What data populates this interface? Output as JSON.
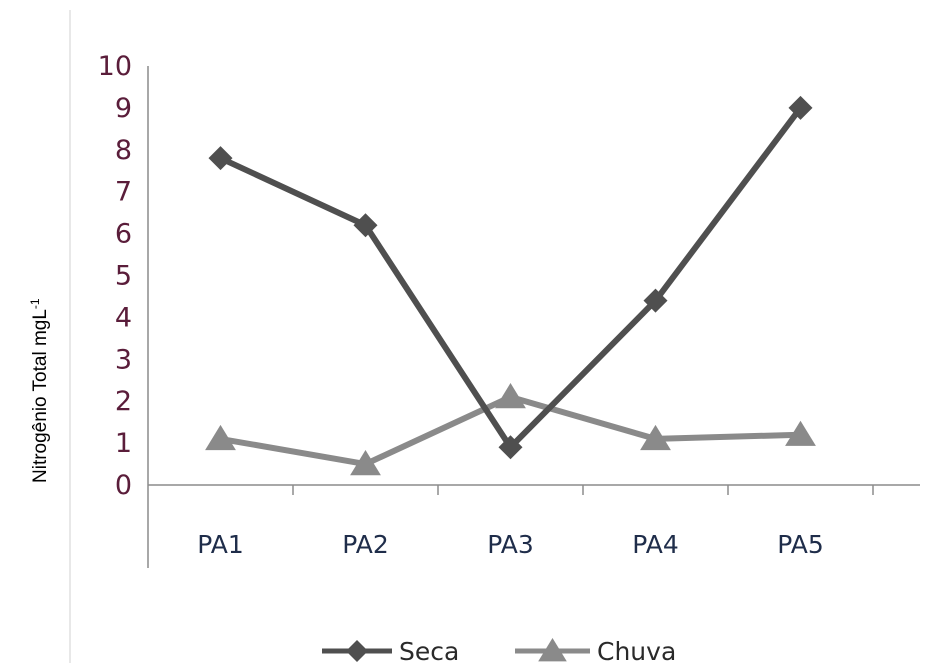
{
  "chart_data": {
    "type": "line",
    "categories": [
      "PA1",
      "PA2",
      "PA3",
      "PA4",
      "PA5"
    ],
    "series": [
      {
        "name": "Seca",
        "values": [
          7.8,
          6.2,
          0.9,
          4.4,
          9.0
        ],
        "color": "#4f4f4f",
        "marker": "diamond"
      },
      {
        "name": "Chuva",
        "values": [
          1.1,
          0.5,
          2.1,
          1.1,
          1.2
        ],
        "color": "#8a8a8a",
        "marker": "triangle"
      }
    ],
    "ylabel": "Nitrogênio Total mgL",
    "ylabel_superscript": "-1",
    "yticks": [
      "0",
      "1",
      "2",
      "3",
      "4",
      "5",
      "6",
      "7",
      "8",
      "9",
      "10"
    ],
    "ylim": [
      0,
      10
    ],
    "grid": false,
    "legend_position": "bottom"
  }
}
